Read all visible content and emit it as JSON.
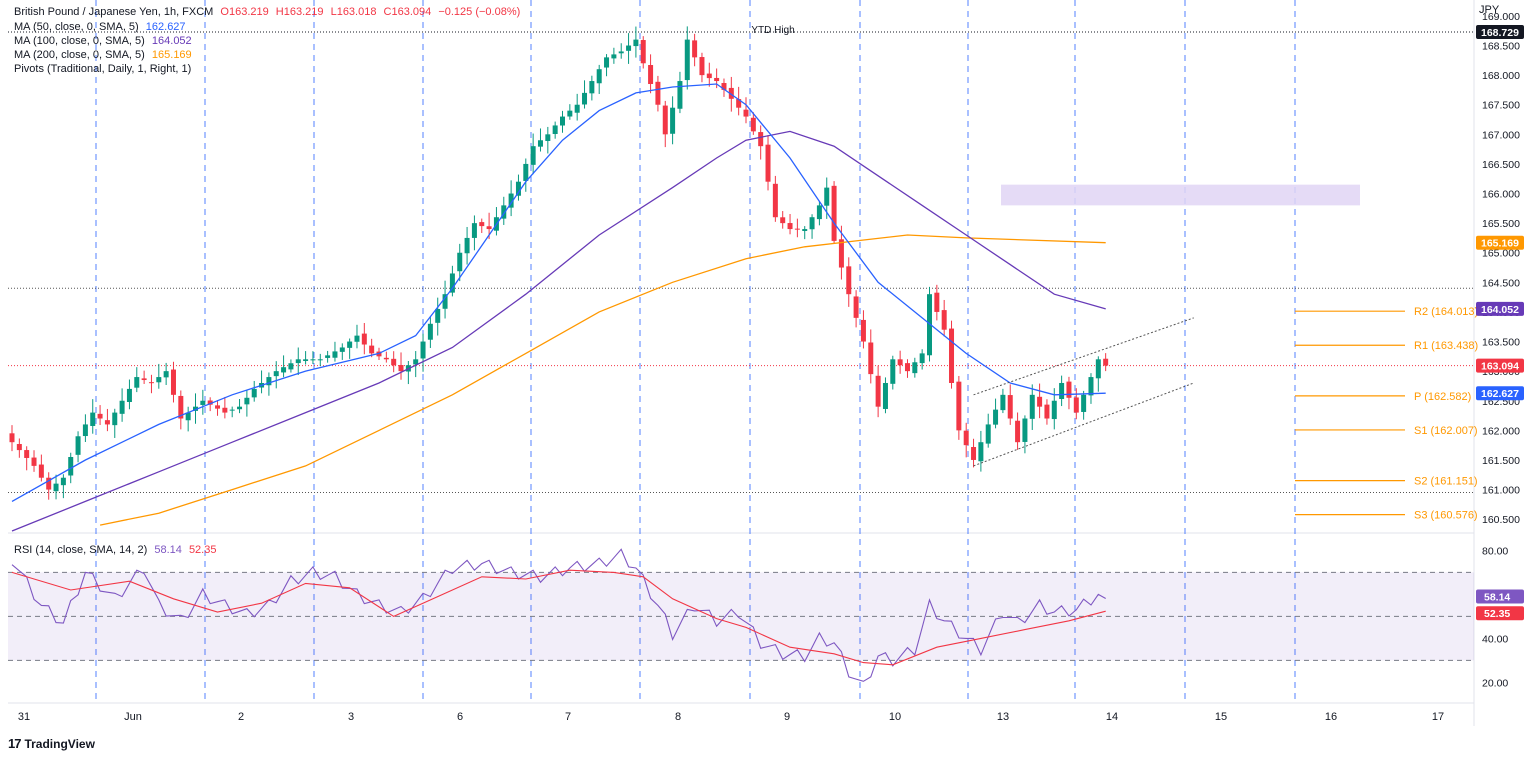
{
  "legend": {
    "symbol": "British Pound / Japanese Yen, 1h, FXCM",
    "ohlc": {
      "o": "O163.219",
      "h": "H163.219",
      "l": "L163.018",
      "c": "C163.094",
      "chg": "−0.125 (−0.08%)"
    },
    "ma50": {
      "label": "MA (50, close, 0, SMA, 5)",
      "value": "162.627"
    },
    "ma100": {
      "label": "MA (100, close, 0, SMA, 5)",
      "value": "164.052"
    },
    "ma200": {
      "label": "MA (200, close, 0, SMA, 5)",
      "value": "165.169"
    },
    "pivots": {
      "label": "Pivots (Traditional, Daily, 1, Right, 1)"
    },
    "rsi": {
      "label": "RSI (14, close, SMA, 14, 2)",
      "value": "58.14",
      "ma": "52.35"
    }
  },
  "brand": "TradingView",
  "currency": "JPY",
  "colors": {
    "up": "#089981",
    "down": "#f23645",
    "ma50": "#2962ff",
    "ma100": "#673ab7",
    "ma200": "#ff9800",
    "pivot": "#ff9800",
    "rsi": "#7e57c2",
    "rsi_ma": "#f23645",
    "grid_v": "#2962ff",
    "zone": "#e1d5f5"
  },
  "chart_data": [
    {
      "type": "candlestick",
      "title": "British Pound / Japanese Yen, 1h, FXCM",
      "ylabel": "JPY",
      "ylim": [
        160.3,
        169.1
      ],
      "x_ticks": [
        "31",
        "Jun",
        "2",
        "3",
        "6",
        "7",
        "8",
        "9",
        "10",
        "13",
        "14",
        "15",
        "16",
        "17"
      ],
      "y_ticks": [
        160.5,
        161.0,
        161.5,
        162.0,
        162.5,
        163.0,
        163.5,
        164.0,
        164.5,
        165.0,
        165.5,
        166.0,
        166.5,
        167.0,
        167.5,
        168.0,
        168.5,
        169.0
      ],
      "annotations": [
        {
          "text": "YTD High",
          "value": 168.729
        }
      ],
      "price_path": [
        [
          0,
          161.8
        ],
        [
          3,
          161.4
        ],
        [
          5,
          161.0
        ],
        [
          7,
          161.2
        ],
        [
          9,
          161.9
        ],
        [
          11,
          162.3
        ],
        [
          13,
          162.1
        ],
        [
          15,
          162.5
        ],
        [
          17,
          162.9
        ],
        [
          19,
          162.8
        ],
        [
          21,
          163.0
        ],
        [
          23,
          162.2
        ],
        [
          26,
          162.5
        ],
        [
          29,
          162.3
        ],
        [
          31,
          162.4
        ],
        [
          33,
          162.7
        ],
        [
          36,
          163.0
        ],
        [
          39,
          163.2
        ],
        [
          42,
          163.2
        ],
        [
          45,
          163.4
        ],
        [
          47,
          163.6
        ],
        [
          49,
          163.3
        ],
        [
          51,
          163.2
        ],
        [
          53,
          163.0
        ],
        [
          55,
          163.2
        ],
        [
          57,
          163.8
        ],
        [
          59,
          164.3
        ],
        [
          61,
          165.0
        ],
        [
          63,
          165.5
        ],
        [
          65,
          165.4
        ],
        [
          67,
          165.8
        ],
        [
          69,
          166.2
        ],
        [
          71,
          166.8
        ],
        [
          73,
          167.0
        ],
        [
          75,
          167.3
        ],
        [
          77,
          167.5
        ],
        [
          79,
          167.9
        ],
        [
          81,
          168.3
        ],
        [
          83,
          168.4
        ],
        [
          85,
          168.6
        ],
        [
          86,
          168.2
        ],
        [
          88,
          167.5
        ],
        [
          89,
          167.0
        ],
        [
          91,
          167.9
        ],
        [
          92,
          168.6
        ],
        [
          94,
          168.0
        ],
        [
          96,
          167.9
        ],
        [
          98,
          167.6
        ],
        [
          100,
          167.3
        ],
        [
          102,
          166.8
        ],
        [
          104,
          165.6
        ],
        [
          106,
          165.4
        ],
        [
          108,
          165.4
        ],
        [
          110,
          165.8
        ],
        [
          111,
          166.1
        ],
        [
          112,
          165.2
        ],
        [
          114,
          164.3
        ],
        [
          116,
          163.5
        ],
        [
          118,
          162.4
        ],
        [
          120,
          163.2
        ],
        [
          122,
          163.0
        ],
        [
          124,
          163.3
        ],
        [
          125,
          164.3
        ],
        [
          127,
          163.7
        ],
        [
          128,
          162.8
        ],
        [
          129,
          162.0
        ],
        [
          131,
          161.5
        ],
        [
          133,
          162.1
        ],
        [
          135,
          162.6
        ],
        [
          137,
          161.8
        ],
        [
          139,
          162.6
        ],
        [
          141,
          162.2
        ],
        [
          143,
          162.8
        ],
        [
          145,
          162.3
        ],
        [
          147,
          162.9
        ],
        [
          148,
          163.2
        ],
        [
          149,
          163.094
        ]
      ],
      "ma50": [
        [
          0,
          160.8
        ],
        [
          10,
          161.5
        ],
        [
          20,
          162.1
        ],
        [
          30,
          162.6
        ],
        [
          40,
          163.0
        ],
        [
          50,
          163.3
        ],
        [
          55,
          163.6
        ],
        [
          60,
          164.4
        ],
        [
          65,
          165.3
        ],
        [
          70,
          166.2
        ],
        [
          75,
          166.9
        ],
        [
          80,
          167.4
        ],
        [
          85,
          167.7
        ],
        [
          90,
          167.8
        ],
        [
          96,
          167.85
        ],
        [
          100,
          167.5
        ],
        [
          106,
          166.6
        ],
        [
          112,
          165.5
        ],
        [
          118,
          164.5
        ],
        [
          124,
          163.9
        ],
        [
          130,
          163.3
        ],
        [
          136,
          162.8
        ],
        [
          142,
          162.6
        ],
        [
          149,
          162.627
        ]
      ],
      "ma100": [
        [
          0,
          160.3
        ],
        [
          10,
          160.8
        ],
        [
          20,
          161.3
        ],
        [
          30,
          161.8
        ],
        [
          40,
          162.3
        ],
        [
          50,
          162.8
        ],
        [
          60,
          163.4
        ],
        [
          70,
          164.3
        ],
        [
          80,
          165.3
        ],
        [
          90,
          166.1
        ],
        [
          96,
          166.6
        ],
        [
          100,
          166.9
        ],
        [
          106,
          167.05
        ],
        [
          112,
          166.8
        ],
        [
          118,
          166.3
        ],
        [
          124,
          165.8
        ],
        [
          130,
          165.3
        ],
        [
          136,
          164.8
        ],
        [
          142,
          164.3
        ],
        [
          149,
          164.052
        ]
      ],
      "ma200": [
        [
          12,
          160.4
        ],
        [
          20,
          160.6
        ],
        [
          30,
          161.0
        ],
        [
          40,
          161.4
        ],
        [
          50,
          162.0
        ],
        [
          60,
          162.6
        ],
        [
          70,
          163.3
        ],
        [
          80,
          164.0
        ],
        [
          90,
          164.5
        ],
        [
          100,
          164.9
        ],
        [
          108,
          165.1
        ],
        [
          115,
          165.2
        ],
        [
          122,
          165.3
        ],
        [
          130,
          165.25
        ],
        [
          149,
          165.169
        ]
      ],
      "pivots": {
        "R2": 164.013,
        "R1": 163.438,
        "P": 162.582,
        "S1": 162.007,
        "S2": 161.151,
        "S3": 160.576
      },
      "pivot_labels": {
        "R2": "R2 (164.013)",
        "R1": "R1 (163.438)",
        "P": "P (162.582)",
        "S1": "S1 (162.007)",
        "S2": "S2 (161.151)",
        "S3": "S3 (160.576)"
      },
      "supply_zone": [
        165.8,
        166.15
      ],
      "channel": {
        "upper": [
          [
            131,
            162.6
          ],
          [
            161,
            163.9
          ]
        ],
        "lower": [
          [
            131,
            161.4
          ],
          [
            161,
            162.8
          ]
        ]
      },
      "horizontal_lines": [
        168.729,
        164.4,
        160.95
      ],
      "price_labels": [
        {
          "text": "168.729",
          "value": 168.729,
          "bg": "#131722"
        },
        {
          "text": "165.169",
          "value": 165.169,
          "bg": "#ff9800"
        },
        {
          "text": "164.052",
          "value": 164.052,
          "bg": "#673ab7"
        },
        {
          "text": "163.094",
          "value": 163.094,
          "bg": "#f23645"
        },
        {
          "text": "162.627",
          "value": 162.627,
          "bg": "#2962ff"
        }
      ],
      "last_close": 163.094
    },
    {
      "type": "line",
      "title": "RSI (14, close, SMA, 14, 2)",
      "ylim": [
        12,
        87
      ],
      "y_ticks": [
        20,
        40,
        80
      ],
      "band": [
        30,
        70
      ],
      "mid": 50,
      "rsi": [
        [
          0,
          76
        ],
        [
          4,
          55
        ],
        [
          7,
          47
        ],
        [
          10,
          70
        ],
        [
          14,
          58
        ],
        [
          18,
          72
        ],
        [
          20,
          55
        ],
        [
          23,
          48
        ],
        [
          26,
          60
        ],
        [
          29,
          55
        ],
        [
          32,
          51
        ],
        [
          35,
          55
        ],
        [
          38,
          66
        ],
        [
          41,
          70
        ],
        [
          44,
          68
        ],
        [
          47,
          60
        ],
        [
          50,
          55
        ],
        [
          53,
          52
        ],
        [
          56,
          58
        ],
        [
          60,
          72
        ],
        [
          64,
          74
        ],
        [
          68,
          70
        ],
        [
          72,
          68
        ],
        [
          76,
          72
        ],
        [
          80,
          74
        ],
        [
          83,
          78
        ],
        [
          85,
          72
        ],
        [
          88,
          55
        ],
        [
          90,
          42
        ],
        [
          93,
          55
        ],
        [
          96,
          48
        ],
        [
          99,
          52
        ],
        [
          102,
          38
        ],
        [
          105,
          33
        ],
        [
          108,
          32
        ],
        [
          110,
          40
        ],
        [
          112,
          38
        ],
        [
          114,
          25
        ],
        [
          116,
          18
        ],
        [
          118,
          32
        ],
        [
          120,
          30
        ],
        [
          123,
          35
        ],
        [
          125,
          55
        ],
        [
          127,
          48
        ],
        [
          130,
          40
        ],
        [
          132,
          35
        ],
        [
          135,
          52
        ],
        [
          137,
          47
        ],
        [
          140,
          55
        ],
        [
          142,
          52
        ],
        [
          145,
          53
        ],
        [
          148,
          60
        ],
        [
          149,
          58.14
        ]
      ],
      "rsi_ma": [
        [
          0,
          70
        ],
        [
          8,
          62
        ],
        [
          16,
          66
        ],
        [
          22,
          58
        ],
        [
          28,
          52
        ],
        [
          34,
          56
        ],
        [
          40,
          65
        ],
        [
          46,
          63
        ],
        [
          52,
          50
        ],
        [
          58,
          59
        ],
        [
          64,
          68
        ],
        [
          70,
          67
        ],
        [
          76,
          71
        ],
        [
          82,
          70
        ],
        [
          86,
          68
        ],
        [
          90,
          58
        ],
        [
          96,
          49
        ],
        [
          100,
          45
        ],
        [
          106,
          36
        ],
        [
          112,
          33
        ],
        [
          116,
          29
        ],
        [
          120,
          28
        ],
        [
          126,
          36
        ],
        [
          132,
          40
        ],
        [
          138,
          44
        ],
        [
          144,
          48
        ],
        [
          149,
          52.35
        ]
      ],
      "value_labels": [
        {
          "text": "58.14",
          "value": 58.14,
          "bg": "#7e57c2"
        },
        {
          "text": "52.35",
          "value": 52.35,
          "bg": "#f23645"
        }
      ]
    }
  ]
}
